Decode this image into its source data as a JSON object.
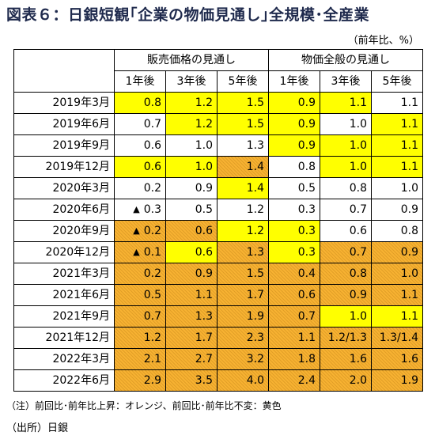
{
  "title": "図表６：日銀短観｢企業の物価見通し｣全規模･全産業",
  "unit": "（前年比、%）",
  "group_headers": [
    "販売価格の見通し",
    "物価全般の見通し"
  ],
  "sub_headers": [
    "1年後",
    "3年後",
    "5年後",
    "1年後",
    "3年後",
    "5年後"
  ],
  "rows": [
    {
      "label": "2019年3月",
      "cells": [
        {
          "v": "0.8",
          "c": "y"
        },
        {
          "v": "1.2",
          "c": "y"
        },
        {
          "v": "1.5",
          "c": "y"
        },
        {
          "v": "0.9",
          "c": "y"
        },
        {
          "v": "1.1",
          "c": "y"
        },
        {
          "v": "1.1",
          "c": "w"
        }
      ]
    },
    {
      "label": "2019年6月",
      "cells": [
        {
          "v": "0.7",
          "c": "w"
        },
        {
          "v": "1.2",
          "c": "y"
        },
        {
          "v": "1.5",
          "c": "y"
        },
        {
          "v": "0.9",
          "c": "y"
        },
        {
          "v": "1.0",
          "c": "w"
        },
        {
          "v": "1.1",
          "c": "y"
        }
      ]
    },
    {
      "label": "2019年9月",
      "cells": [
        {
          "v": "0.6",
          "c": "w"
        },
        {
          "v": "1.0",
          "c": "w"
        },
        {
          "v": "1.3",
          "c": "w"
        },
        {
          "v": "0.9",
          "c": "y"
        },
        {
          "v": "1.0",
          "c": "y"
        },
        {
          "v": "1.1",
          "c": "y"
        }
      ]
    },
    {
      "label": "2019年12月",
      "cells": [
        {
          "v": "0.6",
          "c": "y"
        },
        {
          "v": "1.0",
          "c": "y"
        },
        {
          "v": "1.4",
          "c": "o"
        },
        {
          "v": "0.8",
          "c": "w"
        },
        {
          "v": "1.0",
          "c": "y"
        },
        {
          "v": "1.1",
          "c": "y"
        }
      ]
    },
    {
      "label": "2020年3月",
      "cells": [
        {
          "v": "0.2",
          "c": "w"
        },
        {
          "v": "0.9",
          "c": "w"
        },
        {
          "v": "1.4",
          "c": "y"
        },
        {
          "v": "0.5",
          "c": "w"
        },
        {
          "v": "0.8",
          "c": "w"
        },
        {
          "v": "1.0",
          "c": "w"
        }
      ]
    },
    {
      "label": "2020年6月",
      "cells": [
        {
          "v": "0.3",
          "neg": true,
          "c": "w"
        },
        {
          "v": "0.5",
          "c": "w"
        },
        {
          "v": "1.2",
          "c": "w"
        },
        {
          "v": "0.3",
          "c": "w"
        },
        {
          "v": "0.7",
          "c": "w"
        },
        {
          "v": "0.9",
          "c": "w"
        }
      ]
    },
    {
      "label": "2020年9月",
      "cells": [
        {
          "v": "0.2",
          "neg": true,
          "c": "o"
        },
        {
          "v": "0.6",
          "c": "o"
        },
        {
          "v": "1.2",
          "c": "y"
        },
        {
          "v": "0.3",
          "c": "y"
        },
        {
          "v": "0.6",
          "c": "w"
        },
        {
          "v": "0.8",
          "c": "w"
        }
      ]
    },
    {
      "label": "2020年12月",
      "cells": [
        {
          "v": "0.1",
          "neg": true,
          "c": "o"
        },
        {
          "v": "0.6",
          "c": "y"
        },
        {
          "v": "1.3",
          "c": "o"
        },
        {
          "v": "0.3",
          "c": "y"
        },
        {
          "v": "0.7",
          "c": "o"
        },
        {
          "v": "0.9",
          "c": "o"
        }
      ]
    },
    {
      "label": "2021年3月",
      "cells": [
        {
          "v": "0.2",
          "c": "o"
        },
        {
          "v": "0.9",
          "c": "o"
        },
        {
          "v": "1.5",
          "c": "o"
        },
        {
          "v": "0.4",
          "c": "o"
        },
        {
          "v": "0.8",
          "c": "o"
        },
        {
          "v": "1.0",
          "c": "o"
        }
      ]
    },
    {
      "label": "2021年6月",
      "cells": [
        {
          "v": "0.5",
          "c": "o"
        },
        {
          "v": "1.1",
          "c": "o"
        },
        {
          "v": "1.7",
          "c": "o"
        },
        {
          "v": "0.6",
          "c": "o"
        },
        {
          "v": "0.9",
          "c": "o"
        },
        {
          "v": "1.1",
          "c": "o"
        }
      ]
    },
    {
      "label": "2021年9月",
      "cells": [
        {
          "v": "0.7",
          "c": "o"
        },
        {
          "v": "1.3",
          "c": "o"
        },
        {
          "v": "1.9",
          "c": "o"
        },
        {
          "v": "0.7",
          "c": "o"
        },
        {
          "v": "1.0",
          "c": "y"
        },
        {
          "v": "1.1",
          "c": "y"
        }
      ]
    },
    {
      "label": "2021年12月",
      "cells": [
        {
          "v": "1.2",
          "c": "o"
        },
        {
          "v": "1.7",
          "c": "o"
        },
        {
          "v": "2.3",
          "c": "o"
        },
        {
          "v": "1.1",
          "c": "o"
        },
        {
          "v": "1.2/1.3",
          "c": "o"
        },
        {
          "v": "1.3/1.4",
          "c": "o"
        }
      ]
    },
    {
      "label": "2022年3月",
      "cells": [
        {
          "v": "2.1",
          "c": "o"
        },
        {
          "v": "2.7",
          "c": "o"
        },
        {
          "v": "3.2",
          "c": "o"
        },
        {
          "v": "1.8",
          "c": "o"
        },
        {
          "v": "1.6",
          "c": "o"
        },
        {
          "v": "1.6",
          "c": "o"
        }
      ]
    },
    {
      "label": "2022年6月",
      "cells": [
        {
          "v": "2.9",
          "c": "o"
        },
        {
          "v": "3.5",
          "c": "o"
        },
        {
          "v": "4.0",
          "c": "o"
        },
        {
          "v": "2.4",
          "c": "o"
        },
        {
          "v": "2.0",
          "c": "o"
        },
        {
          "v": "1.9",
          "c": "o"
        }
      ]
    }
  ],
  "negative_marker": "▲",
  "colors": {
    "rise": "#f7b232",
    "unchanged": "#ffff00",
    "none": "#ffffff"
  },
  "note": "（注）前回比･前年比上昇：オレンジ、前回比･前年比不変：黄色",
  "source": "（出所）日銀"
}
